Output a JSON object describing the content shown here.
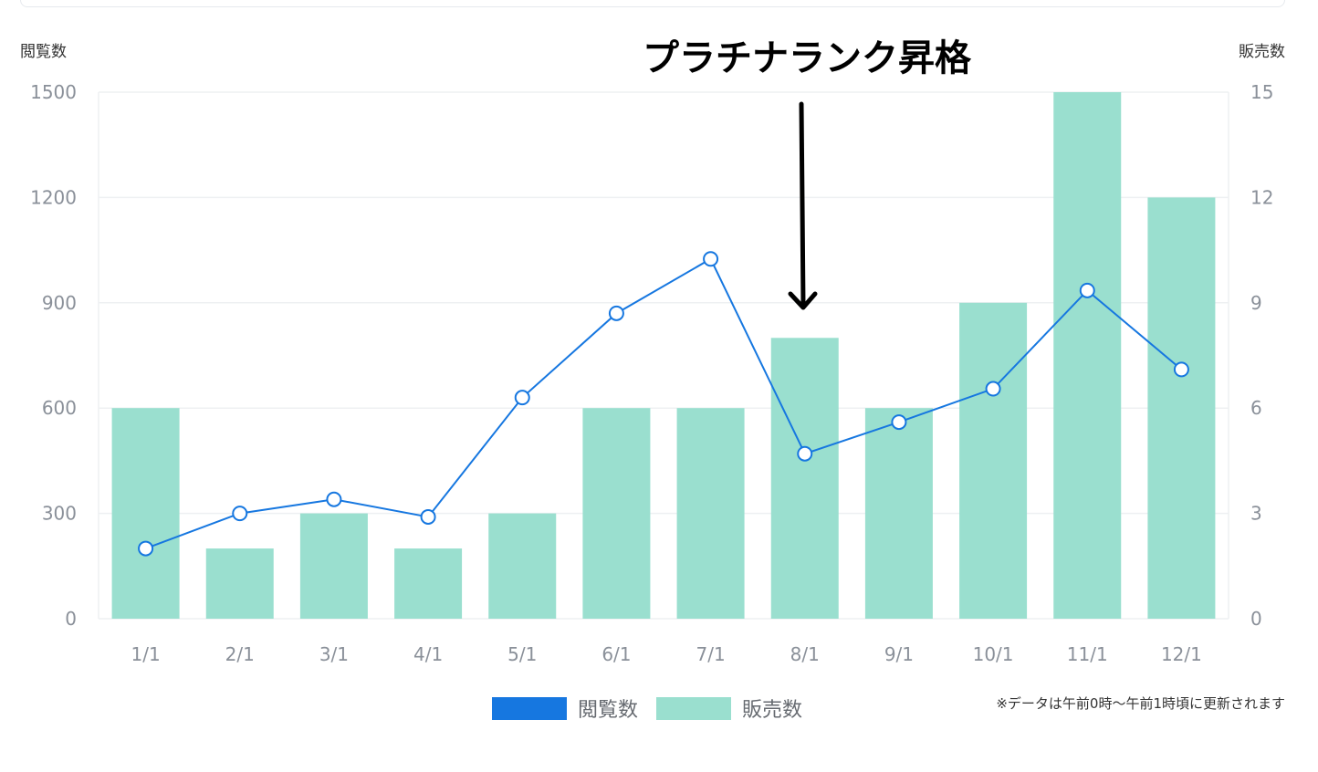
{
  "chart_data": {
    "type": "bar+line",
    "categories": [
      "1/1",
      "2/1",
      "3/1",
      "4/1",
      "5/1",
      "6/1",
      "7/1",
      "8/1",
      "9/1",
      "10/1",
      "11/1",
      "12/1"
    ],
    "series": [
      {
        "name": "閲覧数",
        "type": "line",
        "axis": "left",
        "color": "#1677e0",
        "values": [
          200,
          300,
          340,
          290,
          630,
          870,
          1025,
          470,
          560,
          655,
          935,
          710
        ]
      },
      {
        "name": "販売数",
        "type": "bar",
        "axis": "right",
        "color": "#9adfcf",
        "values": [
          6,
          2,
          3,
          2,
          3,
          6,
          6,
          8,
          6,
          9,
          15,
          12
        ]
      }
    ],
    "left_axis": {
      "label": "閲覧数",
      "min": 0,
      "max": 1500,
      "ticks": [
        "0",
        "300",
        "600",
        "900",
        "1200",
        "1500"
      ]
    },
    "right_axis": {
      "label": "販売数",
      "min": 0,
      "max": 15,
      "ticks": [
        "0",
        "3",
        "6",
        "9",
        "12",
        "15"
      ]
    },
    "grid": true,
    "legend": "bottom-center",
    "annotation": {
      "text": "プラチナランク昇格",
      "target_category": "8/1"
    }
  },
  "footnote": "※データは午前0時〜午前1時頃に更新されます",
  "colors": {
    "line": "#1677e0",
    "bar": "#9adfcf",
    "grid": "#eef0f2",
    "tick_text": "#8a9099",
    "arrow": "#000000"
  }
}
